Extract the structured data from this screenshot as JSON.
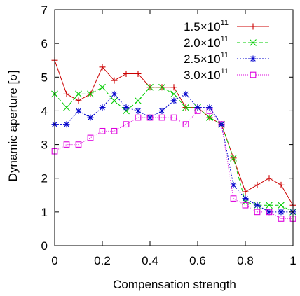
{
  "chart_data": {
    "type": "line",
    "title": "",
    "xlabel": "Compensation strength",
    "ylabel": "Dynamic aperture [σ]",
    "xlim": [
      0,
      1
    ],
    "ylim": [
      0,
      7
    ],
    "grid": false,
    "legend": "top-right",
    "x_ticks": [
      0,
      0.2,
      0.4,
      0.6,
      0.8,
      1
    ],
    "x_tick_labels": [
      "0",
      "0.2",
      "0.4",
      "0.6",
      "0.8",
      "1"
    ],
    "y_ticks": [
      0,
      1,
      2,
      3,
      4,
      5,
      6,
      7
    ],
    "y_tick_labels": [
      "0",
      "1",
      "2",
      "3",
      "4",
      "5",
      "6",
      "7"
    ],
    "x": [
      0,
      0.05,
      0.1,
      0.15,
      0.2,
      0.25,
      0.3,
      0.35,
      0.4,
      0.45,
      0.5,
      0.55,
      0.6,
      0.65,
      0.7,
      0.75,
      0.8,
      0.85,
      0.9,
      0.95,
      1.0
    ],
    "series": [
      {
        "name": "1.5×10",
        "name_exponent": "11",
        "color": "#cc0000",
        "marker": "plus",
        "dash": "solid",
        "values": [
          5.5,
          4.5,
          4.3,
          4.5,
          5.3,
          4.9,
          5.1,
          5.1,
          4.7,
          4.7,
          4.7,
          4.1,
          4.1,
          3.8,
          3.6,
          2.6,
          1.6,
          1.8,
          2.0,
          1.8,
          1.2
        ]
      },
      {
        "name": "2.0×10",
        "name_exponent": "11",
        "color": "#00cc00",
        "marker": "x",
        "dash": "dashed",
        "values": [
          4.5,
          4.1,
          4.5,
          4.5,
          4.7,
          4.3,
          4.0,
          4.3,
          4.7,
          4.7,
          4.5,
          4.1,
          4.1,
          3.8,
          3.6,
          2.6,
          1.3,
          1.2,
          1.2,
          1.2,
          1.0
        ]
      },
      {
        "name": "2.5×10",
        "name_exponent": "11",
        "color": "#0000cc",
        "marker": "star",
        "dash": "dotted",
        "values": [
          3.6,
          3.6,
          4.0,
          3.8,
          4.1,
          4.5,
          4.1,
          4.0,
          3.8,
          4.0,
          4.3,
          4.5,
          4.1,
          4.1,
          3.6,
          1.8,
          1.4,
          1.2,
          1.0,
          1.0,
          1.0
        ]
      },
      {
        "name": "3.0×10",
        "name_exponent": "11",
        "color": "#dd00dd",
        "marker": "square",
        "dash": "fine-dotted",
        "values": [
          2.8,
          3.0,
          3.0,
          3.2,
          3.4,
          3.4,
          3.6,
          3.8,
          3.8,
          3.8,
          3.8,
          3.6,
          4.0,
          4.0,
          3.6,
          1.4,
          1.2,
          1.0,
          1.0,
          0.8,
          0.8
        ]
      }
    ]
  }
}
